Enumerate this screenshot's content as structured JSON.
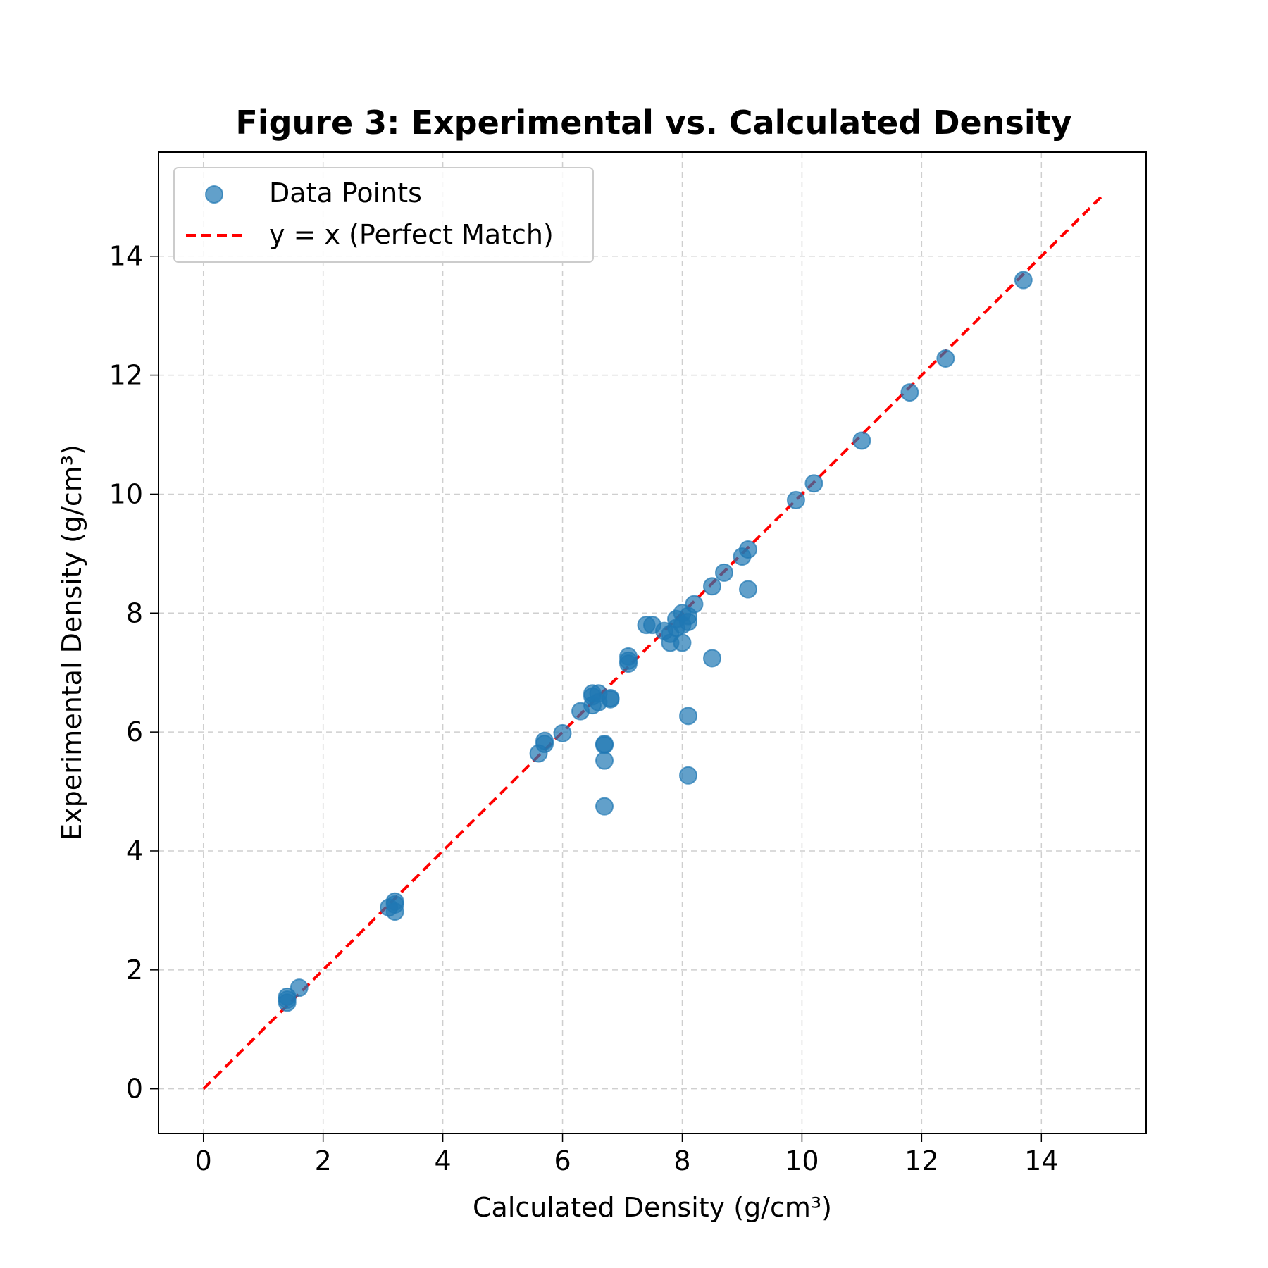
{
  "chart_data": {
    "type": "scatter",
    "title": "Figure 3: Experimental vs. Calculated Density",
    "xlabel": "Calculated Density (g/cm³)",
    "ylabel": "Experimental Density (g/cm³)",
    "xlim": [
      -0.75,
      15.75
    ],
    "ylim": [
      -0.75,
      15.75
    ],
    "xticks": [
      0,
      2,
      4,
      6,
      8,
      10,
      12,
      14
    ],
    "yticks": [
      0,
      2,
      4,
      6,
      8,
      10,
      12,
      14
    ],
    "grid": true,
    "legend_position": "top-left",
    "series": [
      {
        "name": "Data Points",
        "kind": "scatter",
        "color": "#1f77b4",
        "points": [
          [
            1.4,
            1.5
          ],
          [
            1.4,
            1.55
          ],
          [
            1.4,
            1.45
          ],
          [
            1.6,
            1.7
          ],
          [
            3.1,
            3.05
          ],
          [
            3.2,
            3.15
          ],
          [
            3.2,
            3.1
          ],
          [
            3.2,
            2.98
          ],
          [
            5.6,
            5.64
          ],
          [
            5.7,
            5.8
          ],
          [
            5.7,
            5.85
          ],
          [
            6.0,
            5.98
          ],
          [
            6.3,
            6.35
          ],
          [
            6.5,
            6.45
          ],
          [
            6.5,
            6.6
          ],
          [
            6.5,
            6.65
          ],
          [
            6.6,
            6.65
          ],
          [
            6.6,
            6.5
          ],
          [
            6.7,
            5.8
          ],
          [
            6.7,
            5.78
          ],
          [
            6.7,
            5.52
          ],
          [
            6.7,
            4.75
          ],
          [
            6.8,
            6.57
          ],
          [
            6.8,
            6.55
          ],
          [
            7.1,
            7.15
          ],
          [
            7.1,
            7.27
          ],
          [
            7.1,
            7.2
          ],
          [
            7.4,
            7.8
          ],
          [
            7.5,
            7.8
          ],
          [
            7.7,
            7.7
          ],
          [
            7.8,
            7.5
          ],
          [
            7.8,
            7.65
          ],
          [
            7.9,
            7.9
          ],
          [
            7.9,
            7.75
          ],
          [
            8.0,
            8.0
          ],
          [
            8.0,
            7.5
          ],
          [
            8.0,
            7.8
          ],
          [
            8.1,
            7.95
          ],
          [
            8.1,
            7.85
          ],
          [
            8.1,
            6.27
          ],
          [
            8.1,
            5.27
          ],
          [
            8.2,
            8.15
          ],
          [
            8.5,
            8.45
          ],
          [
            8.5,
            7.24
          ],
          [
            8.7,
            8.68
          ],
          [
            9.0,
            8.95
          ],
          [
            9.1,
            9.07
          ],
          [
            9.1,
            8.4
          ],
          [
            9.9,
            9.9
          ],
          [
            10.2,
            10.18
          ],
          [
            11.0,
            10.9
          ],
          [
            11.8,
            11.71
          ],
          [
            12.4,
            12.28
          ],
          [
            13.7,
            13.6
          ]
        ]
      },
      {
        "name": "y = x (Perfect Match)",
        "kind": "line",
        "color": "#ff0000",
        "x": [
          0,
          15
        ],
        "y": [
          0,
          15
        ]
      }
    ]
  }
}
